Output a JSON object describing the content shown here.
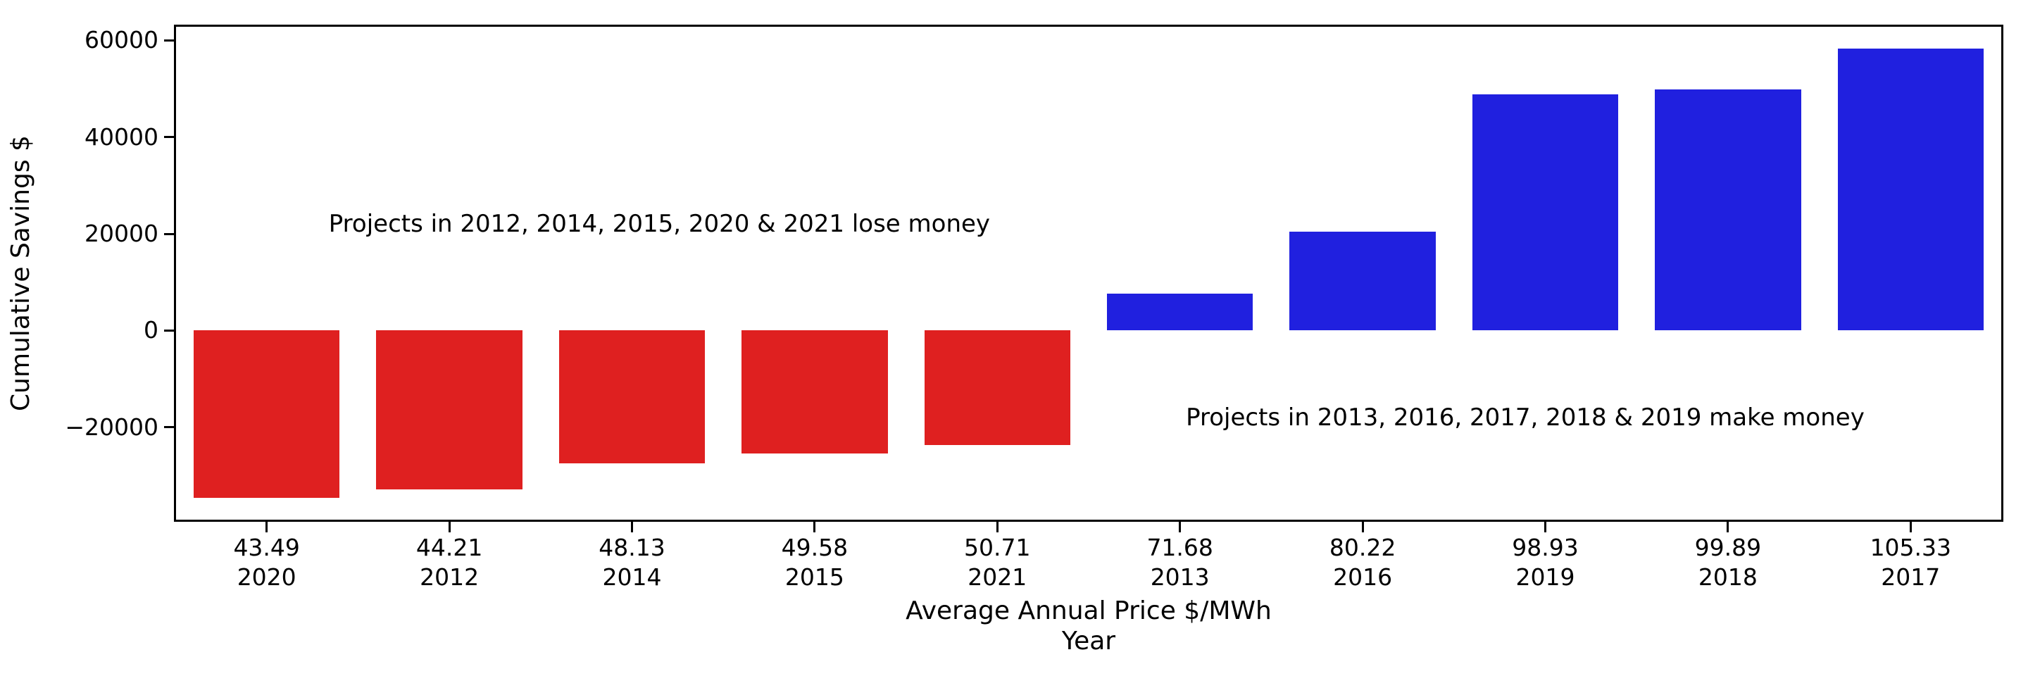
{
  "chart_data": {
    "type": "bar",
    "title": "",
    "ylabel": "Cumulative Savings $",
    "xlabel_line1": "Average Annual Price $/MWh",
    "xlabel_line2": "Year",
    "categories": [
      {
        "price": "43.49",
        "year": "2020"
      },
      {
        "price": "44.21",
        "year": "2012"
      },
      {
        "price": "48.13",
        "year": "2014"
      },
      {
        "price": "49.58",
        "year": "2015"
      },
      {
        "price": "50.71",
        "year": "2021"
      },
      {
        "price": "71.68",
        "year": "2013"
      },
      {
        "price": "80.22",
        "year": "2016"
      },
      {
        "price": "98.93",
        "year": "2019"
      },
      {
        "price": "99.89",
        "year": "2018"
      },
      {
        "price": "105.33",
        "year": "2017"
      }
    ],
    "values": [
      -34600,
      -32900,
      -27500,
      -25400,
      -23700,
      7700,
      20500,
      48800,
      49900,
      58300
    ],
    "yticks": [
      -20000,
      0,
      20000,
      40000,
      60000
    ],
    "ytick_labels": [
      "−20000",
      "0",
      "20000",
      "40000",
      "60000"
    ],
    "ylim": [
      -39250,
      62950
    ],
    "bar_width_fraction": 0.8,
    "grid": false,
    "legend": null,
    "colors": {
      "negative_bar": "#df2020",
      "positive_bar": "#2020df",
      "axis": "#000000",
      "text": "#000000",
      "background": "#ffffff"
    },
    "annotations": [
      {
        "text": "Projects in 2012, 2014, 2015, 2020 & 2021 lose money",
        "x_slot": 2.65,
        "y_value": 22000
      },
      {
        "text": "Projects in 2013, 2016, 2017, 2018 & 2019 make money",
        "x_slot": 7.39,
        "y_value": -18000
      }
    ]
  }
}
